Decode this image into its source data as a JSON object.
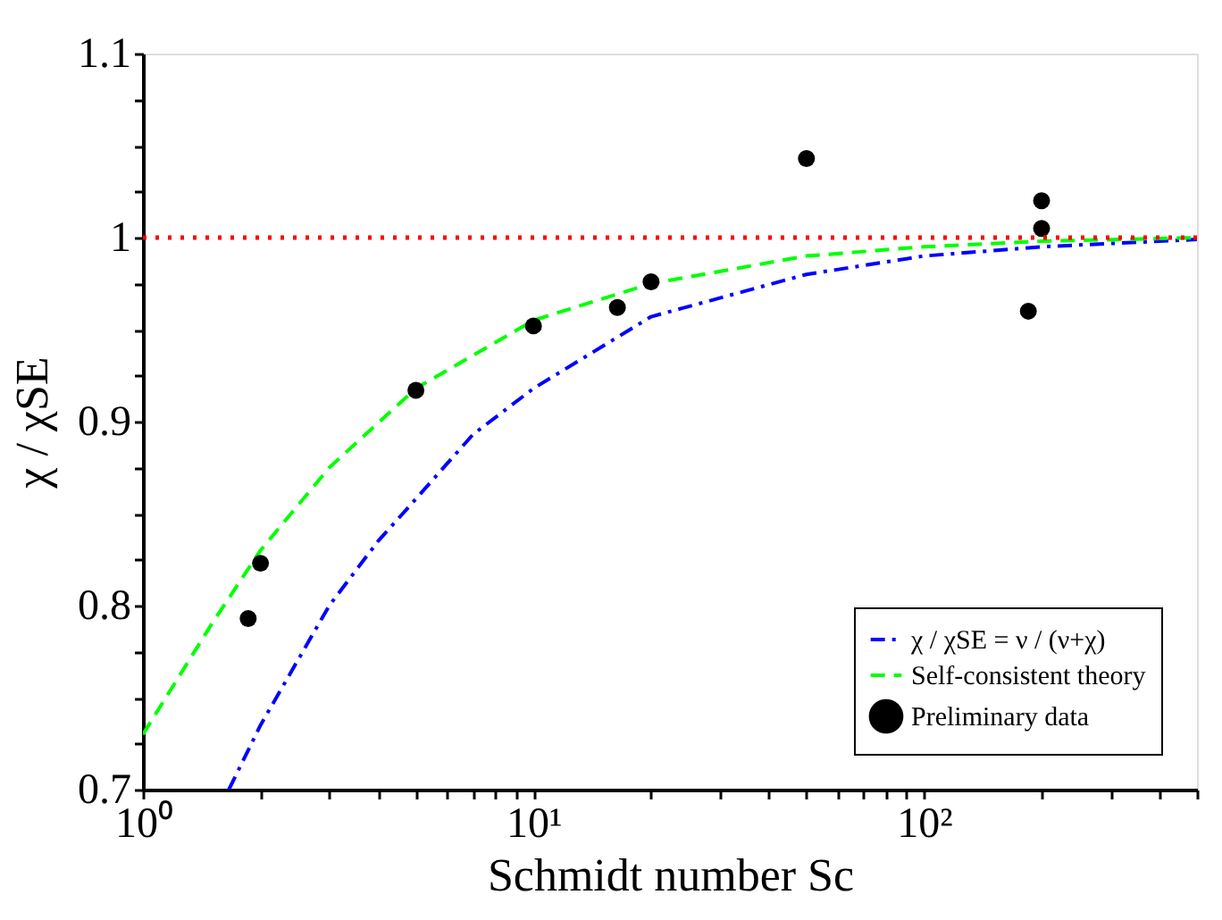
{
  "chart_data": {
    "type": "line",
    "xlabel": "Schmidt number Sc",
    "ylabel": "χ / χSE",
    "log": "x",
    "xlim": [
      1,
      500
    ],
    "ylim": [
      0.7,
      1.1
    ],
    "xticks": [
      {
        "value": 1,
        "label": "10⁰"
      },
      {
        "value": 2,
        "label": null
      },
      {
        "value": 3,
        "label": null
      },
      {
        "value": 4,
        "label": null
      },
      {
        "value": 5,
        "label": null
      },
      {
        "value": 6,
        "label": null
      },
      {
        "value": 7,
        "label": null
      },
      {
        "value": 8,
        "label": null
      },
      {
        "value": 9,
        "label": null
      },
      {
        "value": 10,
        "label": "10¹"
      },
      {
        "value": 20,
        "label": null
      },
      {
        "value": 30,
        "label": null
      },
      {
        "value": 40,
        "label": null
      },
      {
        "value": 50,
        "label": null
      },
      {
        "value": 60,
        "label": null
      },
      {
        "value": 70,
        "label": null
      },
      {
        "value": 80,
        "label": null
      },
      {
        "value": 90,
        "label": null
      },
      {
        "value": 100,
        "label": "10²"
      },
      {
        "value": 200,
        "label": null
      },
      {
        "value": 300,
        "label": null
      },
      {
        "value": 400,
        "label": null
      },
      {
        "value": 500,
        "label": null
      }
    ],
    "yticks": [
      {
        "value": 0.7,
        "label": "0.7"
      },
      {
        "value": 0.725,
        "label": null
      },
      {
        "value": 0.75,
        "label": null
      },
      {
        "value": 0.775,
        "label": null
      },
      {
        "value": 0.8,
        "label": "0.8"
      },
      {
        "value": 0.825,
        "label": null
      },
      {
        "value": 0.85,
        "label": null
      },
      {
        "value": 0.875,
        "label": null
      },
      {
        "value": 0.9,
        "label": "0.9"
      },
      {
        "value": 0.925,
        "label": null
      },
      {
        "value": 0.95,
        "label": null
      },
      {
        "value": 0.975,
        "label": null
      },
      {
        "value": 1,
        "label": "1"
      },
      {
        "value": 1.025,
        "label": null
      },
      {
        "value": 1.05,
        "label": null
      },
      {
        "value": 1.075,
        "label": null
      },
      {
        "value": 1.1,
        "label": "1.1"
      }
    ],
    "grid": false,
    "legend": "bottom right",
    "ref_lines": [
      {
        "axis": "y",
        "value": 1,
        "color": "#ff0000",
        "line_style": "dotted"
      }
    ],
    "series": [
      {
        "name": "χ / χSE = ν / (ν+χ)",
        "type": "line",
        "color": "#0000ff",
        "line_style": "dashdot",
        "x": [
          1.66,
          2,
          3,
          4,
          5,
          7,
          10,
          20,
          50,
          100,
          200,
          500
        ],
        "values": [
          0.7,
          0.735,
          0.8,
          0.835,
          0.858,
          0.893,
          0.918,
          0.957,
          0.98,
          0.99,
          0.995,
          0.999
        ]
      },
      {
        "name": "Self-consistent theory",
        "type": "line",
        "color": "#00ff00",
        "line_style": "dashed",
        "x": [
          1,
          1.5,
          2,
          3,
          5,
          10,
          20,
          50,
          100,
          200,
          500
        ],
        "values": [
          0.73,
          0.79,
          0.83,
          0.875,
          0.918,
          0.955,
          0.975,
          0.99,
          0.995,
          0.998,
          1.0
        ]
      },
      {
        "name": "Preliminary data",
        "type": "scatter",
        "color": "#000000",
        "marker": "circle",
        "x": [
          1.86,
          2,
          5,
          10,
          16.4,
          20,
          50,
          185,
          200,
          200
        ],
        "values": [
          0.793,
          0.823,
          0.917,
          0.952,
          0.962,
          0.976,
          1.043,
          0.96,
          1.02,
          1.005
        ]
      }
    ]
  }
}
